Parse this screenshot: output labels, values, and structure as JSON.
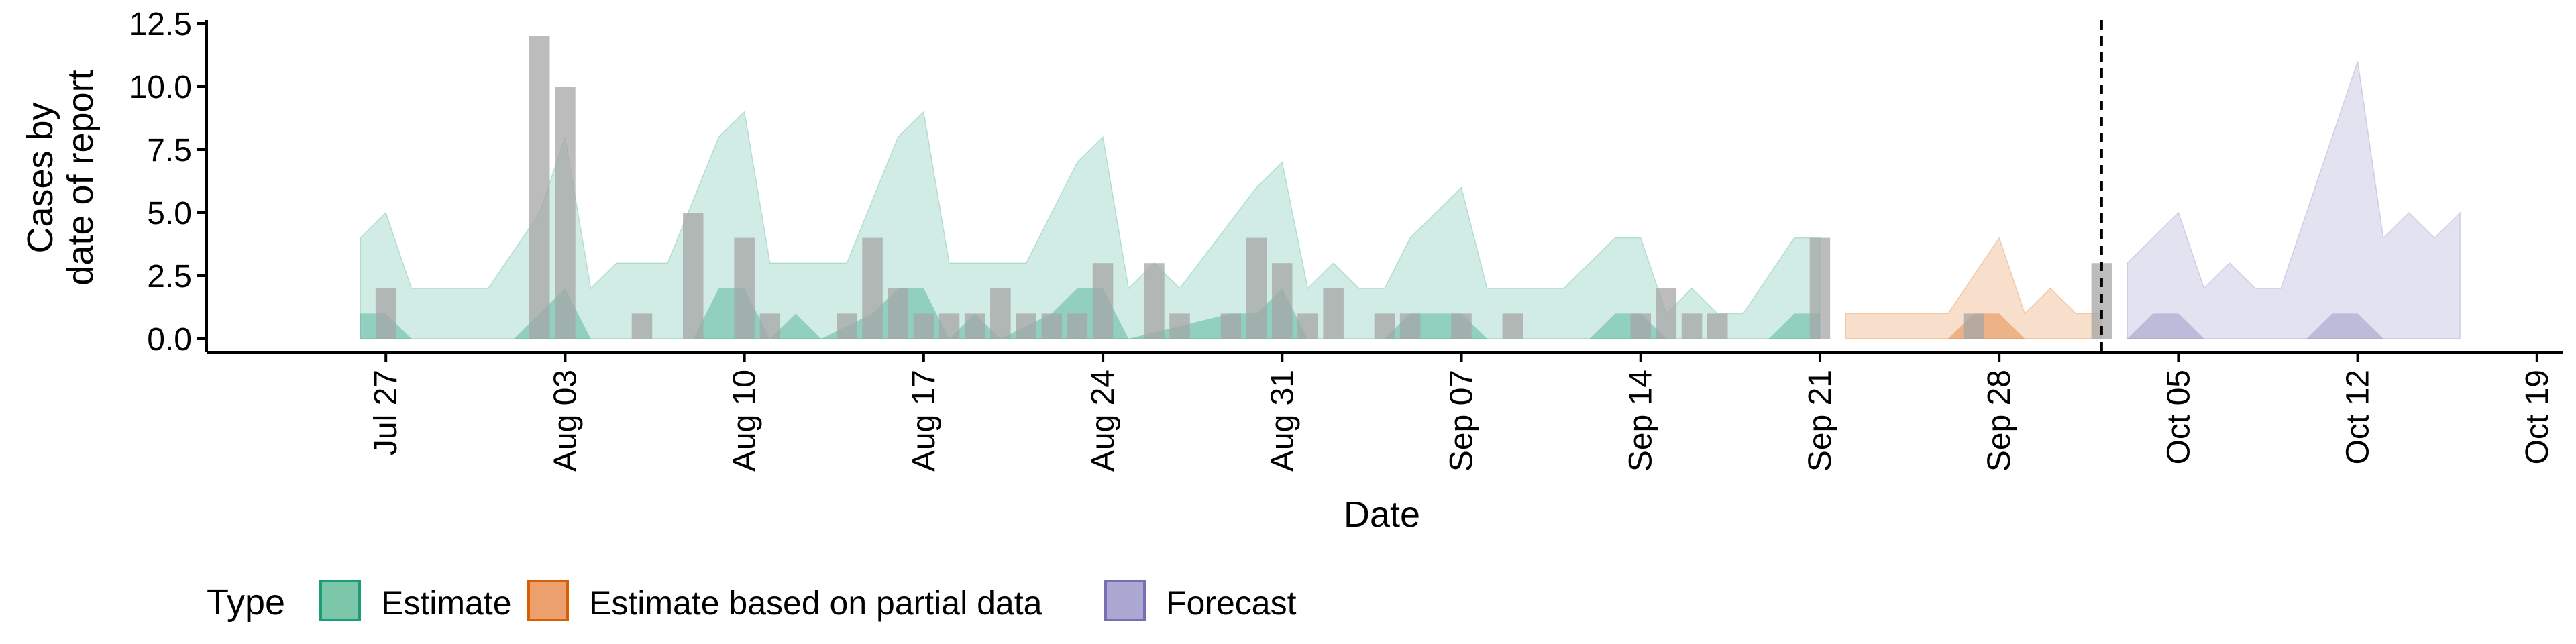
{
  "chart_data": {
    "type": "area",
    "title": "",
    "xlabel": "Date",
    "ylabel": [
      "Cases by",
      "date of report"
    ],
    "ylim": [
      0,
      12.5
    ],
    "yticks": [
      "0.0",
      "2.5",
      "5.0",
      "7.5",
      "10.0",
      "12.5"
    ],
    "xlim": [
      "2020-07-20",
      "2020-10-20"
    ],
    "xticks": [
      {
        "date": "2020-07-27",
        "label": "Jul 27"
      },
      {
        "date": "2020-08-03",
        "label": "Aug 03"
      },
      {
        "date": "2020-08-10",
        "label": "Aug 10"
      },
      {
        "date": "2020-08-17",
        "label": "Aug 17"
      },
      {
        "date": "2020-08-24",
        "label": "Aug 24"
      },
      {
        "date": "2020-08-31",
        "label": "Aug 31"
      },
      {
        "date": "2020-09-07",
        "label": "Sep 07"
      },
      {
        "date": "2020-09-14",
        "label": "Sep 14"
      },
      {
        "date": "2020-09-21",
        "label": "Sep 21"
      },
      {
        "date": "2020-09-28",
        "label": "Sep 28"
      },
      {
        "date": "2020-10-05",
        "label": "Oct 05"
      },
      {
        "date": "2020-10-12",
        "label": "Oct 12"
      },
      {
        "date": "2020-10-19",
        "label": "Oct 19"
      }
    ],
    "vline_date": "2020-10-02",
    "legend": {
      "title": "Type",
      "position": "bottom",
      "entries": [
        {
          "label": "Estimate",
          "fill": "#7cc7a9",
          "stroke": "#1b9e77"
        },
        {
          "label": "Estimate based on partial data",
          "fill": "#eba06e",
          "stroke": "#d95f02"
        },
        {
          "label": "Forecast",
          "fill": "#aba9d3",
          "stroke": "#7570b3"
        }
      ]
    },
    "colors": {
      "Estimate": "#1b9e77",
      "Estimate based on partial data": "#d95f02",
      "Forecast": "#7570b3",
      "bars": "#a6a6a6"
    },
    "bars": [
      {
        "date": "2020-07-27",
        "value": 2
      },
      {
        "date": "2020-08-02",
        "value": 12
      },
      {
        "date": "2020-08-03",
        "value": 10
      },
      {
        "date": "2020-08-06",
        "value": 1
      },
      {
        "date": "2020-08-08",
        "value": 5
      },
      {
        "date": "2020-08-10",
        "value": 4
      },
      {
        "date": "2020-08-11",
        "value": 1
      },
      {
        "date": "2020-08-14",
        "value": 1
      },
      {
        "date": "2020-08-15",
        "value": 4
      },
      {
        "date": "2020-08-16",
        "value": 2
      },
      {
        "date": "2020-08-17",
        "value": 1
      },
      {
        "date": "2020-08-18",
        "value": 1
      },
      {
        "date": "2020-08-19",
        "value": 1
      },
      {
        "date": "2020-08-20",
        "value": 2
      },
      {
        "date": "2020-08-21",
        "value": 1
      },
      {
        "date": "2020-08-22",
        "value": 1
      },
      {
        "date": "2020-08-23",
        "value": 1
      },
      {
        "date": "2020-08-24",
        "value": 3
      },
      {
        "date": "2020-08-26",
        "value": 3
      },
      {
        "date": "2020-08-27",
        "value": 1
      },
      {
        "date": "2020-08-29",
        "value": 1
      },
      {
        "date": "2020-08-30",
        "value": 4
      },
      {
        "date": "2020-08-31",
        "value": 3
      },
      {
        "date": "2020-09-01",
        "value": 1
      },
      {
        "date": "2020-09-02",
        "value": 2
      },
      {
        "date": "2020-09-04",
        "value": 1
      },
      {
        "date": "2020-09-05",
        "value": 1
      },
      {
        "date": "2020-09-07",
        "value": 1
      },
      {
        "date": "2020-09-09",
        "value": 1
      },
      {
        "date": "2020-09-14",
        "value": 1
      },
      {
        "date": "2020-09-15",
        "value": 2
      },
      {
        "date": "2020-09-16",
        "value": 1
      },
      {
        "date": "2020-09-17",
        "value": 1
      },
      {
        "date": "2020-09-21",
        "value": 4
      },
      {
        "date": "2020-09-27",
        "value": 1
      },
      {
        "date": "2020-10-02",
        "value": 3
      }
    ],
    "series": [
      {
        "name": "Estimate",
        "upper": [
          [
            "2020-07-26",
            4
          ],
          [
            "2020-07-27",
            5
          ],
          [
            "2020-07-28",
            2
          ],
          [
            "2020-07-29",
            2
          ],
          [
            "2020-07-30",
            2
          ],
          [
            "2020-07-31",
            2
          ],
          [
            "2020-08-02",
            5
          ],
          [
            "2020-08-03",
            8
          ],
          [
            "2020-08-04",
            2
          ],
          [
            "2020-08-05",
            3
          ],
          [
            "2020-08-07",
            3
          ],
          [
            "2020-08-09",
            8
          ],
          [
            "2020-08-10",
            9
          ],
          [
            "2020-08-11",
            3
          ],
          [
            "2020-08-14",
            3
          ],
          [
            "2020-08-16",
            8
          ],
          [
            "2020-08-17",
            9
          ],
          [
            "2020-08-18",
            3
          ],
          [
            "2020-08-21",
            3
          ],
          [
            "2020-08-23",
            7
          ],
          [
            "2020-08-24",
            8
          ],
          [
            "2020-08-25",
            2
          ],
          [
            "2020-08-26",
            3
          ],
          [
            "2020-08-27",
            2
          ],
          [
            "2020-08-30",
            6
          ],
          [
            "2020-08-31",
            7
          ],
          [
            "2020-09-01",
            2
          ],
          [
            "2020-09-02",
            3
          ],
          [
            "2020-09-03",
            2
          ],
          [
            "2020-09-04",
            2
          ],
          [
            "2020-09-05",
            4
          ],
          [
            "2020-09-07",
            6
          ],
          [
            "2020-09-08",
            2
          ],
          [
            "2020-09-11",
            2
          ],
          [
            "2020-09-13",
            4
          ],
          [
            "2020-09-14",
            4
          ],
          [
            "2020-09-15",
            1
          ],
          [
            "2020-09-16",
            2
          ],
          [
            "2020-09-17",
            1
          ],
          [
            "2020-09-18",
            1
          ],
          [
            "2020-09-20",
            4
          ],
          [
            "2020-09-21",
            4
          ]
        ],
        "lower": [
          [
            "2020-07-26",
            1
          ],
          [
            "2020-07-27",
            1
          ],
          [
            "2020-07-28",
            0
          ],
          [
            "2020-08-01",
            0
          ],
          [
            "2020-08-02",
            1
          ],
          [
            "2020-08-03",
            2
          ],
          [
            "2020-08-04",
            0
          ],
          [
            "2020-08-08",
            0
          ],
          [
            "2020-08-09",
            2
          ],
          [
            "2020-08-10",
            2
          ],
          [
            "2020-08-11",
            0
          ],
          [
            "2020-08-12",
            1
          ],
          [
            "2020-08-13",
            0
          ],
          [
            "2020-08-15",
            1
          ],
          [
            "2020-08-16",
            2
          ],
          [
            "2020-08-17",
            2
          ],
          [
            "2020-08-18",
            0
          ],
          [
            "2020-08-19",
            1
          ],
          [
            "2020-08-20",
            0
          ],
          [
            "2020-08-22",
            1
          ],
          [
            "2020-08-23",
            2
          ],
          [
            "2020-08-24",
            2
          ],
          [
            "2020-08-25",
            0
          ],
          [
            "2020-08-29",
            1
          ],
          [
            "2020-08-30",
            1
          ],
          [
            "2020-08-31",
            2
          ],
          [
            "2020-09-01",
            0
          ],
          [
            "2020-09-04",
            0
          ],
          [
            "2020-09-05",
            1
          ],
          [
            "2020-09-07",
            1
          ],
          [
            "2020-09-08",
            0
          ],
          [
            "2020-09-12",
            0
          ],
          [
            "2020-09-13",
            1
          ],
          [
            "2020-09-14",
            1
          ],
          [
            "2020-09-15",
            0
          ],
          [
            "2020-09-19",
            0
          ],
          [
            "2020-09-20",
            1
          ],
          [
            "2020-09-21",
            1
          ]
        ]
      },
      {
        "name": "Estimate based on partial data",
        "upper": [
          [
            "2020-09-22",
            1
          ],
          [
            "2020-09-26",
            1
          ],
          [
            "2020-09-28",
            4
          ],
          [
            "2020-09-29",
            1
          ],
          [
            "2020-09-30",
            2
          ],
          [
            "2020-10-01",
            1
          ],
          [
            "2020-10-02",
            1
          ]
        ],
        "lower": [
          [
            "2020-09-22",
            0
          ],
          [
            "2020-09-26",
            0
          ],
          [
            "2020-09-27",
            1
          ],
          [
            "2020-09-28",
            1
          ],
          [
            "2020-09-29",
            0
          ],
          [
            "2020-10-02",
            0
          ]
        ]
      },
      {
        "name": "Forecast",
        "upper": [
          [
            "2020-10-03",
            3
          ],
          [
            "2020-10-05",
            5
          ],
          [
            "2020-10-06",
            2
          ],
          [
            "2020-10-07",
            3
          ],
          [
            "2020-10-08",
            2
          ],
          [
            "2020-10-09",
            2
          ],
          [
            "2020-10-11",
            8
          ],
          [
            "2020-10-12",
            11
          ],
          [
            "2020-10-13",
            4
          ],
          [
            "2020-10-14",
            5
          ],
          [
            "2020-10-15",
            4
          ],
          [
            "2020-10-16",
            5
          ]
        ],
        "lower": [
          [
            "2020-10-03",
            0
          ],
          [
            "2020-10-04",
            1
          ],
          [
            "2020-10-05",
            1
          ],
          [
            "2020-10-06",
            0
          ],
          [
            "2020-10-10",
            0
          ],
          [
            "2020-10-11",
            1
          ],
          [
            "2020-10-12",
            1
          ],
          [
            "2020-10-13",
            0
          ],
          [
            "2020-10-16",
            0
          ]
        ]
      }
    ]
  }
}
